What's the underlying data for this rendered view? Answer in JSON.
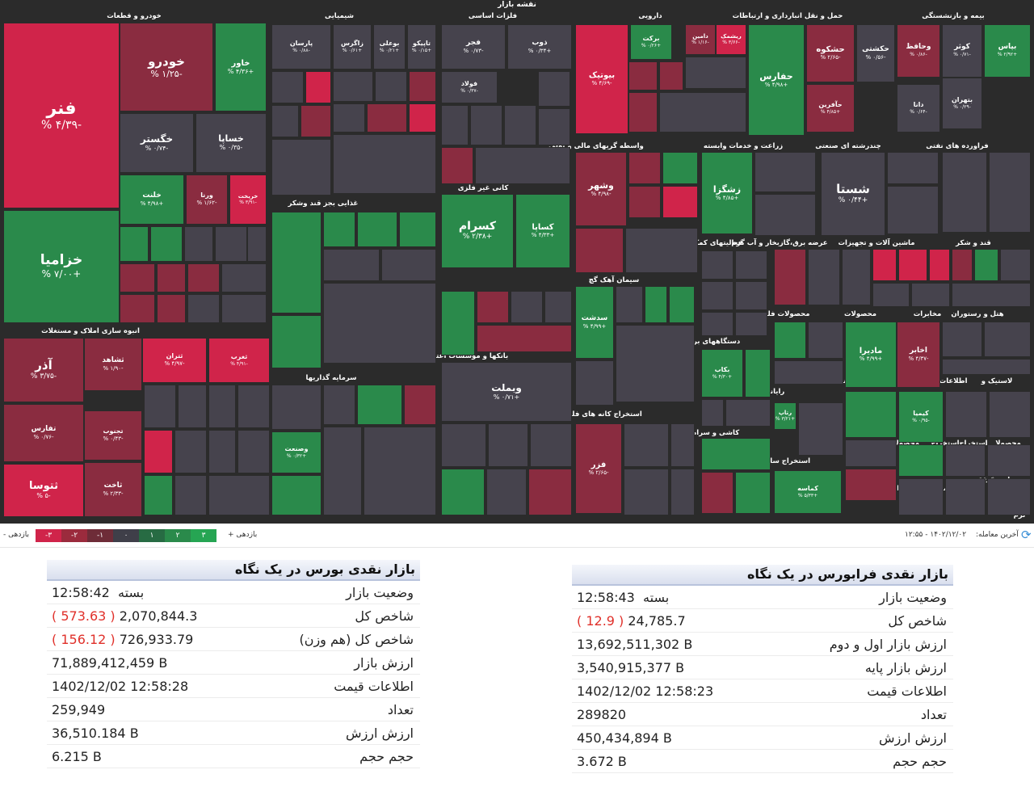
{
  "treemap": {
    "title_line1": "نقشه بازار",
    "sectors": [
      "خودرو و قطعات",
      "شیمیایی",
      "فلزات اساسی",
      "دارویی",
      "حمل و نقل انبارداری و ارتباطات",
      "بیمه و بازنشستگی",
      "انبوه سازی املاک و مستغلات",
      "غذایی بجز قند وشکر",
      "کانی غیر فلزی",
      "سیمان آهک گچ",
      "واسطه گریهای مالی و پولی",
      "زراعت و خدمات وابسته",
      "چندرشته ای صنعتی",
      "فراورده های نفتی",
      "فعالیتهای کمکی به نهاد",
      "عرضه برق،گازبخار و آب گرم",
      "ماشین آلات و تجهیزات",
      "قند و شکر",
      "بانکها و موسسات اعتباری",
      "سرمایه گذاریها",
      "دستگاههای برقی",
      "محصولات فلزی",
      "محصولات",
      "مخابرات",
      "هتل و رستوران",
      "استخراج کانه های فلزی",
      "کاشی و سرامیک",
      "رایانه",
      "فنی و مهندسی",
      "وسایل ارتباطی",
      "اطلاعات و",
      "لاستیک و",
      "استخراج سایر معادن",
      "منسوجات",
      "محصولات",
      "استخراج",
      "استخراج",
      "محصولا",
      "سایر واسطه",
      "محصولات",
      "خرده",
      "پیما",
      "نرم"
    ],
    "tiles": [
      {
        "sym": "فنر",
        "pct": "-۴/۳۹ %"
      },
      {
        "sym": "خودرو",
        "pct": "-۱/۲۵ %"
      },
      {
        "sym": "خاور",
        "pct": "+۴/۳۶ %"
      },
      {
        "sym": "خگستر",
        "pct": "-۰/۷۴ %"
      },
      {
        "sym": "خساپا",
        "pct": "-۰/۳۵ %"
      },
      {
        "sym": "خزامیا",
        "pct": "+۷/۰۰ %"
      },
      {
        "sym": "خلنت",
        "pct": "+۴/۹۸ %"
      },
      {
        "sym": "ورنا",
        "pct": "-۱/۶۲ %"
      },
      {
        "sym": "خریخت",
        "pct": "-۳/۹۱ %"
      },
      {
        "sym": "آذر",
        "pct": "-۳/۷۵ %"
      },
      {
        "sym": "ثشاهد",
        "pct": "-۱/۹۰ %"
      },
      {
        "sym": "تفارس",
        "pct": "-۰/۷۶ %"
      },
      {
        "sym": "ثتوسا",
        "pct": "-۵ %"
      },
      {
        "sym": "تجنوب",
        "pct": "-۰/۴۳ %"
      },
      {
        "sym": "ثاخت",
        "pct": "-۲/۳۳ %"
      },
      {
        "sym": "ثتران",
        "pct": "-۴/۹۷ %"
      },
      {
        "sym": "ثغرب",
        "pct": "-۴/۹۱ %"
      },
      {
        "sym": "پارسان",
        "pct": "-۰/۸۸ %"
      },
      {
        "sym": "زاگرس",
        "pct": "+۰/۶۱ %"
      },
      {
        "sym": "بوعلی",
        "pct": "+۰/۲۱ %"
      },
      {
        "sym": "تاپیکو",
        "pct": "+۰/۱۵ %"
      },
      {
        "sym": "فجر",
        "pct": "-۰/۷۳ %"
      },
      {
        "sym": "فولاد",
        "pct": "-۰/۳۷ %"
      },
      {
        "sym": "ذوب",
        "pct": "+۰/۳۴ %"
      },
      {
        "sym": "برکت",
        "pct": "+۰/۲۶ %"
      },
      {
        "sym": "دامین",
        "pct": "-۱/۱۶ %"
      },
      {
        "sym": "ریشمک",
        "pct": "-۳/۶۶ %"
      },
      {
        "sym": "بیوتیک",
        "pct": "-۴/۶۹ %"
      },
      {
        "sym": "حفارس",
        "pct": "+۴/۹۸ %"
      },
      {
        "sym": "حشکوه",
        "pct": "-۲/۶۵ %"
      },
      {
        "sym": "حکشتی",
        "pct": "-۰/۵۶ %"
      },
      {
        "sym": "وحافظ",
        "pct": "-۰/۸۶ %"
      },
      {
        "sym": "کوثر",
        "pct": "-۰/۷۱ %"
      },
      {
        "sym": "بپاس",
        "pct": "+۲/۹۲ %"
      },
      {
        "sym": "بتهران",
        "pct": "-۰/۲۹ %"
      },
      {
        "sym": "دانا",
        "pct": "-۰/۶۴ %"
      },
      {
        "sym": "حآفرین",
        "pct": "+۴/۸۵ %"
      },
      {
        "sym": "کسرام",
        "pct": "+۲/۳۸ %"
      },
      {
        "sym": "کساپا",
        "pct": "+۴/۳۳ %"
      },
      {
        "sym": "وشهر",
        "pct": "-۴/۹۸ %"
      },
      {
        "sym": "زشگزا",
        "pct": "+۴/۸۵ %"
      },
      {
        "sym": "شستا",
        "pct": "+۰/۴۴ %"
      },
      {
        "sym": "وبملت",
        "pct": "+۰/۷۱ %"
      },
      {
        "sym": "سدشت",
        "pct": "+۴/۹۹ %"
      },
      {
        "sym": "فزر",
        "pct": "-۲/۶۵ %"
      },
      {
        "sym": "ماديرا",
        "pct": "+۴/۹۹ %"
      },
      {
        "sym": "اخابر",
        "pct": "-۴/۳۷ %"
      },
      {
        "sym": "رتاپ",
        "pct": "+۳/۲۱ %"
      },
      {
        "sym": "کیمیا",
        "pct": "-۰/۹۵ %"
      },
      {
        "sym": "وصنعت",
        "pct": "+۰/۳۲ %"
      },
      {
        "sym": "کماسه",
        "pct": "+۵/۳۳ %"
      },
      {
        "sym": "بکاب",
        "pct": "+۴/۳۰ %"
      }
    ]
  },
  "legend": {
    "left_label": "بازدهی -",
    "right_label": "بازدهی +",
    "boxes": [
      "-۳",
      "-۲",
      "-۱",
      "۰",
      "۱",
      "۲",
      "۳"
    ],
    "colors": [
      "#d0244a",
      "#9b2b3d",
      "#6e2c38",
      "#3f3f49",
      "#276b43",
      "#2a8a4b",
      "#26a553"
    ],
    "last_trade_label": "آخرین معامله:",
    "last_trade_value": "۱۴۰۲/۱۲/۰۲ - ۱۲:۵۵",
    "refresh_icon": "refresh-icon"
  },
  "bourse_panel": {
    "title": "بازار نقدی بورس در یک نگاه",
    "rows": [
      {
        "label": "وضعیت بازار",
        "value": "بسته  12:58:42",
        "change": ""
      },
      {
        "label": "شاخص کل",
        "value": "2,070,844.3",
        "change": "( 573.63 )"
      },
      {
        "label": "شاخص کل (هم وزن)",
        "value": "726,933.79",
        "change": "( 156.12 )"
      },
      {
        "label": "ارزش بازار",
        "value": "71,889,412,459 B",
        "change": ""
      },
      {
        "label": "اطلاعات قیمت",
        "value": "1402/12/02 12:58:28",
        "change": ""
      },
      {
        "label": "تعداد",
        "value": "259,949",
        "change": ""
      },
      {
        "label": "ارزش ارزش",
        "value": "36,510.184 B",
        "change": ""
      },
      {
        "label": "حجم حجم",
        "value": "6.215 B",
        "change": ""
      }
    ]
  },
  "farabourse_panel": {
    "title": "بازار نقدی فرابورس در یک نگاه",
    "rows": [
      {
        "label": "وضعیت بازار",
        "value": "بسته  12:58:43",
        "change": ""
      },
      {
        "label": "شاخص کل",
        "value": "24,785.7",
        "change": "( 12.9 )"
      },
      {
        "label": "ارزش بازار اول و دوم",
        "value": "13,692,511,302 B",
        "change": ""
      },
      {
        "label": "ارزش بازار پایه",
        "value": "3,540,915,377 B",
        "change": ""
      },
      {
        "label": "اطلاعات قیمت",
        "value": "1402/12/02 12:58:23",
        "change": ""
      },
      {
        "label": "تعداد",
        "value": "289820",
        "change": ""
      },
      {
        "label": "ارزش ارزش",
        "value": "450,434,894 B",
        "change": ""
      },
      {
        "label": "حجم حجم",
        "value": "3.672 B",
        "change": ""
      }
    ]
  }
}
